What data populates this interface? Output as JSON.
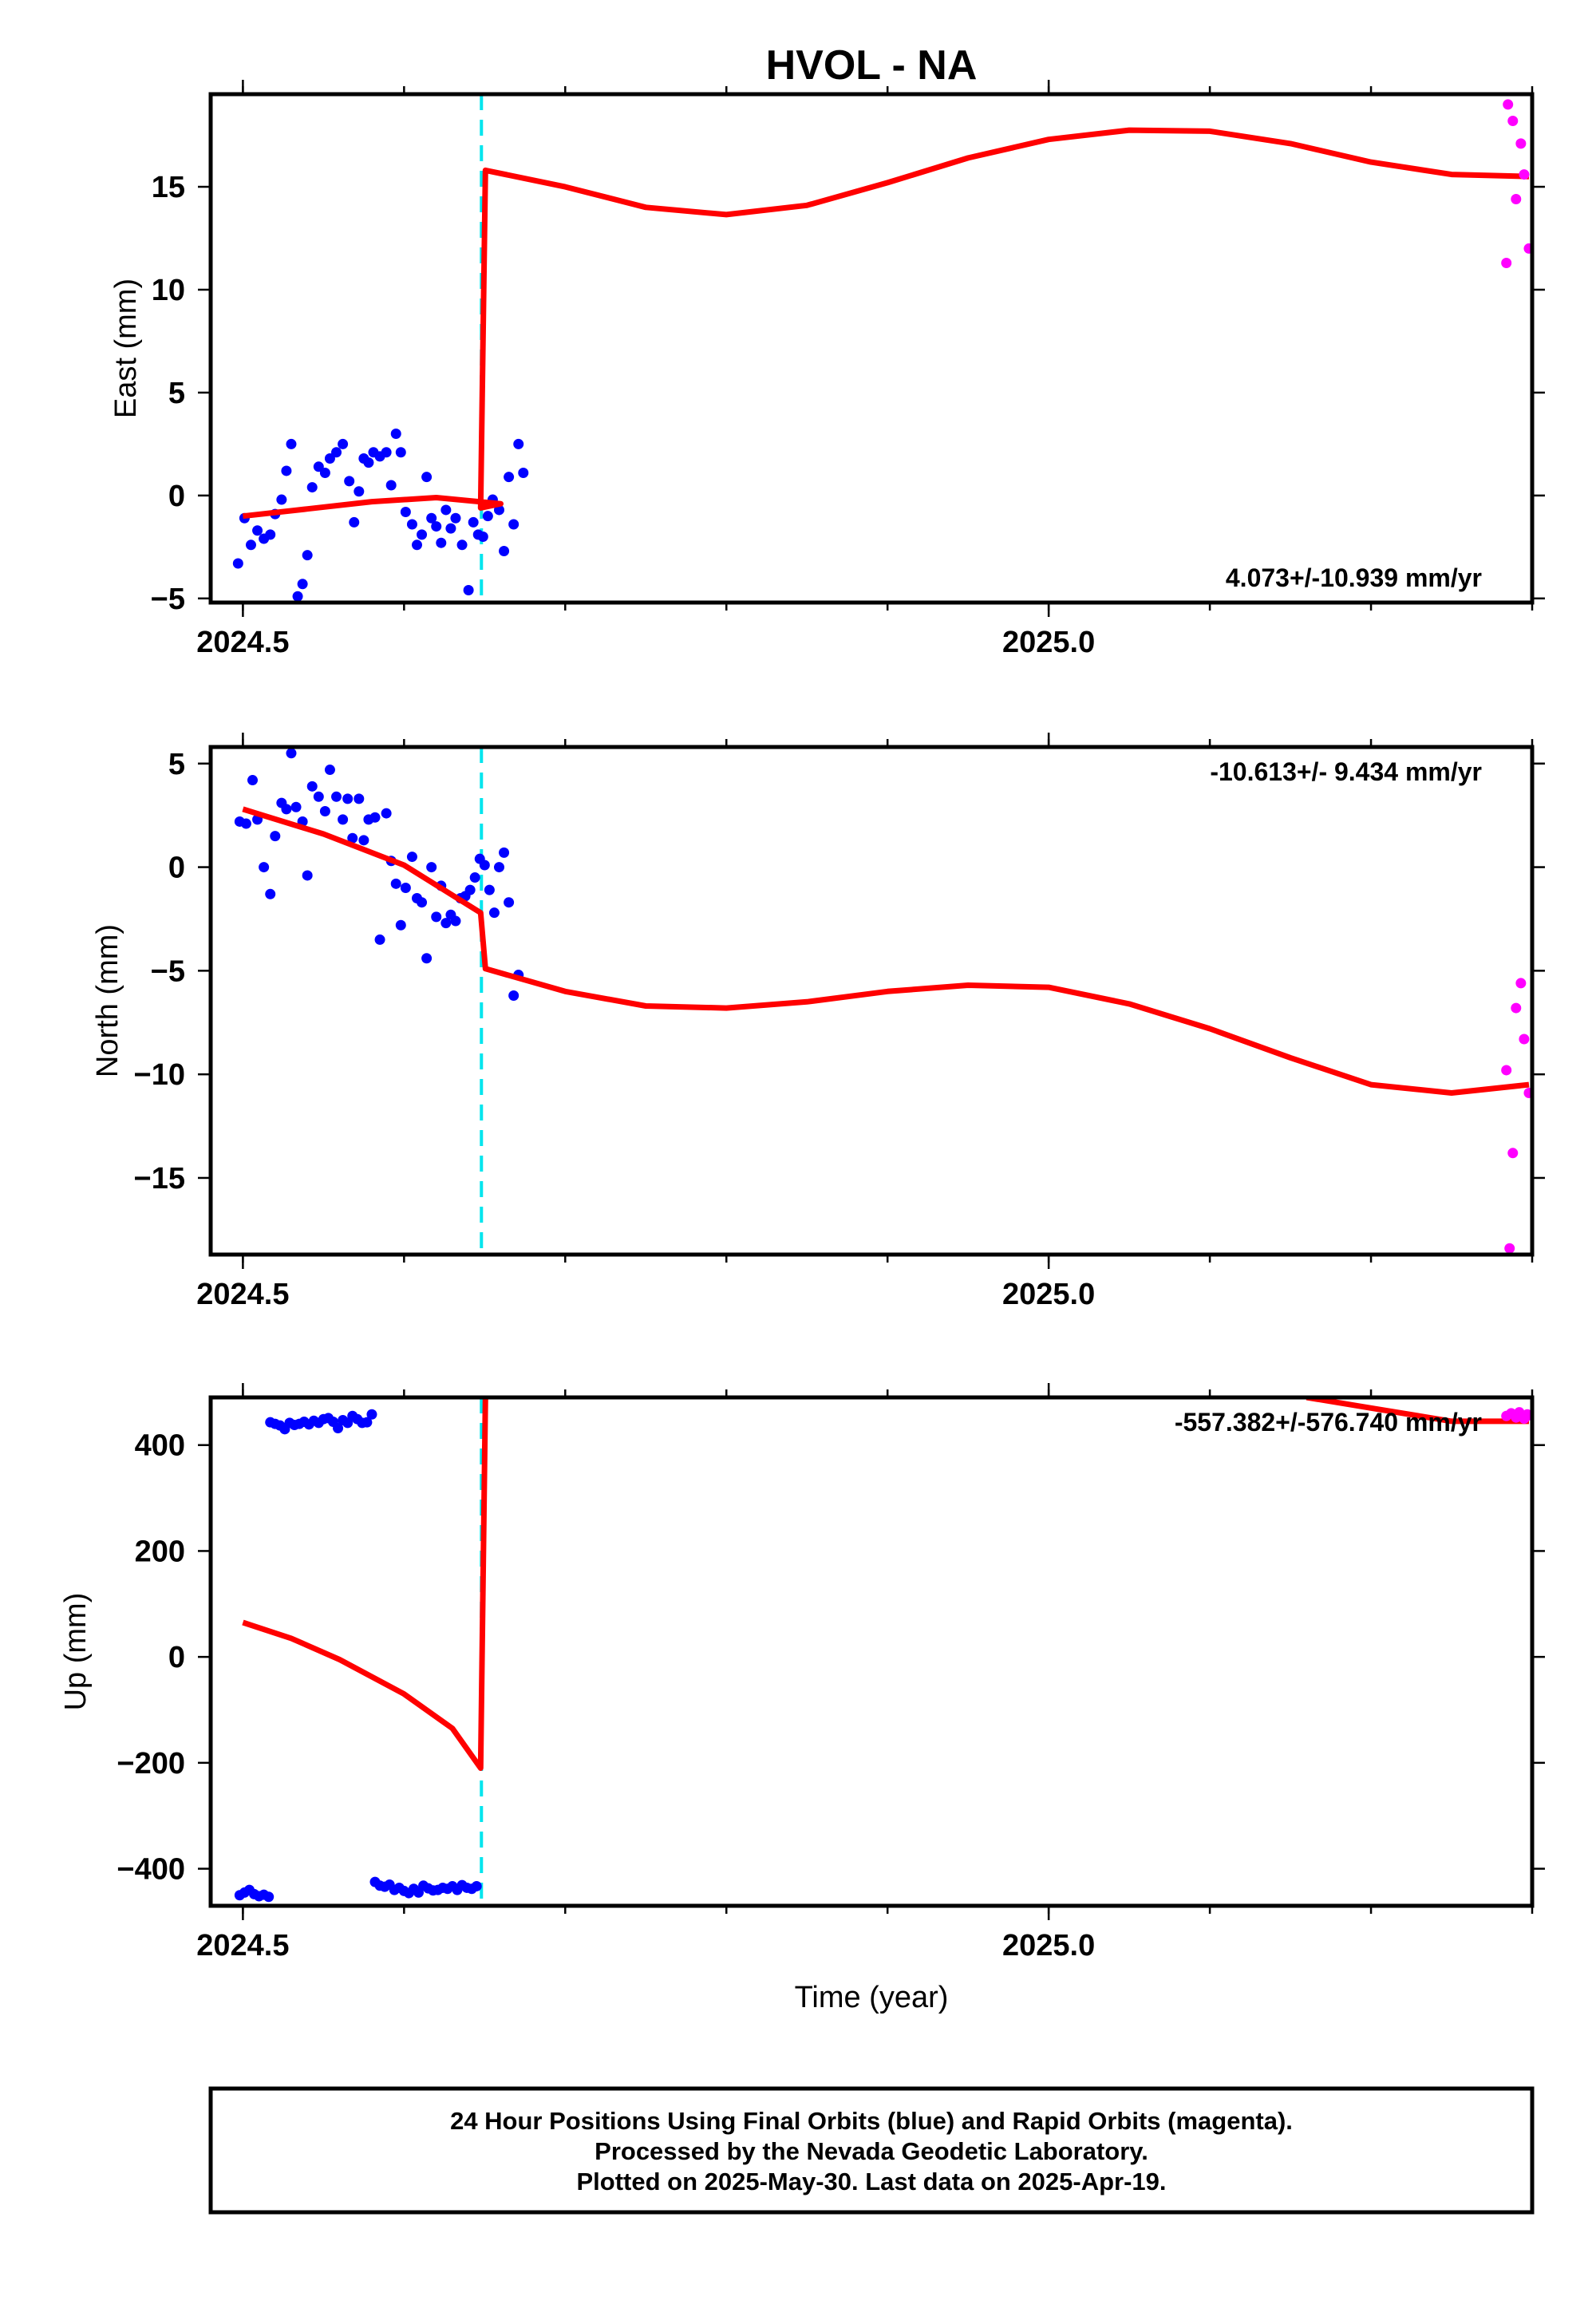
{
  "chart_data": {
    "type": "scatter",
    "title": "HVOL - NA",
    "xlabel": "Time (year)",
    "xlim": [
      2024.48,
      2025.3
    ],
    "x_ticks": [
      2024.5,
      2025.0
    ],
    "event_line_x": 2024.648,
    "series_colors": {
      "final": "#0000ff",
      "rapid": "#ff00ff",
      "fit": "#ff0000",
      "event": "#00e5ee"
    },
    "panels": [
      {
        "id": "east",
        "ylabel": "East (mm)",
        "ylim": [
          -5.2,
          19.5
        ],
        "y_ticks": [
          -5,
          0,
          5,
          10,
          15
        ],
        "y_tick_labels": [
          "−5",
          "0",
          "5",
          "10",
          "15"
        ],
        "x_tick_labels": [
          "2024.5",
          "2025.0"
        ],
        "rate_label": "4.073+/-10.939 mm/yr",
        "rate_pos": "bottom-right",
        "final": [
          [
            2024.497,
            -3.3
          ],
          [
            2024.501,
            -1.1
          ],
          [
            2024.505,
            -2.4
          ],
          [
            2024.509,
            -1.7
          ],
          [
            2024.513,
            -2.1
          ],
          [
            2024.517,
            -1.9
          ],
          [
            2024.52,
            -0.9
          ],
          [
            2024.524,
            -0.2
          ],
          [
            2024.527,
            1.2
          ],
          [
            2024.53,
            2.5
          ],
          [
            2024.534,
            -4.9
          ],
          [
            2024.537,
            -4.3
          ],
          [
            2024.54,
            -2.9
          ],
          [
            2024.543,
            0.4
          ],
          [
            2024.547,
            1.4
          ],
          [
            2024.551,
            1.1
          ],
          [
            2024.554,
            1.8
          ],
          [
            2024.558,
            2.1
          ],
          [
            2024.562,
            2.5
          ],
          [
            2024.566,
            0.7
          ],
          [
            2024.569,
            -1.3
          ],
          [
            2024.572,
            0.2
          ],
          [
            2024.575,
            1.8
          ],
          [
            2024.578,
            1.6
          ],
          [
            2024.581,
            2.1
          ],
          [
            2024.585,
            1.9
          ],
          [
            2024.589,
            2.1
          ],
          [
            2024.592,
            0.5
          ],
          [
            2024.595,
            3.0
          ],
          [
            2024.598,
            2.1
          ],
          [
            2024.601,
            -0.8
          ],
          [
            2024.605,
            -1.4
          ],
          [
            2024.608,
            -2.4
          ],
          [
            2024.611,
            -1.9
          ],
          [
            2024.614,
            0.9
          ],
          [
            2024.617,
            -1.1
          ],
          [
            2024.62,
            -1.5
          ],
          [
            2024.623,
            -2.3
          ],
          [
            2024.626,
            -0.7
          ],
          [
            2024.629,
            -1.6
          ],
          [
            2024.632,
            -1.1
          ],
          [
            2024.636,
            -2.4
          ],
          [
            2024.64,
            -4.6
          ],
          [
            2024.643,
            -1.3
          ],
          [
            2024.646,
            -1.9
          ],
          [
            2024.649,
            -2.0
          ],
          [
            2024.652,
            -1.0
          ],
          [
            2024.655,
            -0.2
          ],
          [
            2024.659,
            -0.7
          ],
          [
            2024.662,
            -2.7
          ],
          [
            2024.665,
            0.9
          ],
          [
            2024.668,
            -1.4
          ],
          [
            2024.671,
            2.5
          ],
          [
            2024.674,
            1.1
          ]
        ],
        "rapid": [
          [
            2025.284,
            11.3
          ],
          [
            2025.285,
            19.0
          ],
          [
            2025.288,
            18.2
          ],
          [
            2025.29,
            14.4
          ],
          [
            2025.293,
            17.1
          ],
          [
            2025.295,
            15.6
          ],
          [
            2025.298,
            12.0
          ]
        ],
        "fit": [
          [
            2024.5,
            -1.0
          ],
          [
            2024.54,
            -0.65
          ],
          [
            2024.58,
            -0.3
          ],
          [
            2024.62,
            -0.1
          ],
          [
            2024.66,
            -0.4
          ],
          [
            2024.6475,
            -0.6
          ],
          [
            2024.6505,
            15.8
          ],
          [
            2024.7,
            15.0
          ],
          [
            2024.75,
            14.0
          ],
          [
            2024.8,
            13.65
          ],
          [
            2024.85,
            14.1
          ],
          [
            2024.9,
            15.2
          ],
          [
            2024.95,
            16.4
          ],
          [
            2025.0,
            17.3
          ],
          [
            2025.05,
            17.75
          ],
          [
            2025.1,
            17.7
          ],
          [
            2025.15,
            17.1
          ],
          [
            2025.2,
            16.2
          ],
          [
            2025.25,
            15.6
          ],
          [
            2025.298,
            15.5
          ]
        ]
      },
      {
        "id": "north",
        "ylabel": "North (mm)",
        "ylim": [
          -18.7,
          5.8
        ],
        "y_ticks": [
          -15,
          -10,
          -5,
          0,
          5
        ],
        "y_tick_labels": [
          "−15",
          "−10",
          "−5",
          "0",
          "5"
        ],
        "x_tick_labels": [
          "2024.5",
          "2025.0"
        ],
        "rate_label": "-10.613+/- 9.434 mm/yr",
        "rate_pos": "top-right",
        "final": [
          [
            2024.498,
            2.2
          ],
          [
            2024.502,
            2.1
          ],
          [
            2024.506,
            4.2
          ],
          [
            2024.509,
            2.3
          ],
          [
            2024.513,
            0.0
          ],
          [
            2024.517,
            -1.3
          ],
          [
            2024.52,
            1.5
          ],
          [
            2024.524,
            3.1
          ],
          [
            2024.527,
            2.8
          ],
          [
            2024.53,
            5.5
          ],
          [
            2024.533,
            2.9
          ],
          [
            2024.537,
            2.2
          ],
          [
            2024.54,
            -0.4
          ],
          [
            2024.543,
            3.9
          ],
          [
            2024.547,
            3.4
          ],
          [
            2024.551,
            2.7
          ],
          [
            2024.554,
            4.7
          ],
          [
            2024.558,
            3.4
          ],
          [
            2024.562,
            2.3
          ],
          [
            2024.565,
            3.3
          ],
          [
            2024.568,
            1.4
          ],
          [
            2024.572,
            3.3
          ],
          [
            2024.575,
            1.3
          ],
          [
            2024.578,
            2.3
          ],
          [
            2024.582,
            2.4
          ],
          [
            2024.585,
            -3.5
          ],
          [
            2024.589,
            2.6
          ],
          [
            2024.592,
            0.3
          ],
          [
            2024.595,
            -0.8
          ],
          [
            2024.598,
            -2.8
          ],
          [
            2024.601,
            -1.0
          ],
          [
            2024.605,
            0.5
          ],
          [
            2024.608,
            -1.5
          ],
          [
            2024.611,
            -1.7
          ],
          [
            2024.614,
            -4.4
          ],
          [
            2024.617,
            0.0
          ],
          [
            2024.62,
            -2.4
          ],
          [
            2024.623,
            -0.9
          ],
          [
            2024.626,
            -2.7
          ],
          [
            2024.629,
            -2.3
          ],
          [
            2024.632,
            -2.6
          ],
          [
            2024.635,
            -1.5
          ],
          [
            2024.638,
            -1.4
          ],
          [
            2024.641,
            -1.1
          ],
          [
            2024.644,
            -0.5
          ],
          [
            2024.647,
            0.4
          ],
          [
            2024.65,
            0.1
          ],
          [
            2024.653,
            -1.1
          ],
          [
            2024.656,
            -2.2
          ],
          [
            2024.659,
            0.0
          ],
          [
            2024.662,
            0.7
          ],
          [
            2024.665,
            -1.7
          ],
          [
            2024.668,
            -6.2
          ],
          [
            2024.671,
            -5.2
          ]
        ],
        "rapid": [
          [
            2025.284,
            -9.8
          ],
          [
            2025.286,
            -18.4
          ],
          [
            2025.288,
            -13.8
          ],
          [
            2025.29,
            -6.8
          ],
          [
            2025.293,
            -5.6
          ],
          [
            2025.295,
            -8.3
          ],
          [
            2025.298,
            -10.9
          ]
        ],
        "fit": [
          [
            2024.5,
            2.8
          ],
          [
            2024.55,
            1.6
          ],
          [
            2024.6,
            0.1
          ],
          [
            2024.6475,
            -2.2
          ],
          [
            2024.6505,
            -4.9
          ],
          [
            2024.7,
            -6.0
          ],
          [
            2024.75,
            -6.7
          ],
          [
            2024.8,
            -6.8
          ],
          [
            2024.85,
            -6.5
          ],
          [
            2024.9,
            -6.0
          ],
          [
            2024.95,
            -5.7
          ],
          [
            2025.0,
            -5.8
          ],
          [
            2025.05,
            -6.6
          ],
          [
            2025.1,
            -7.8
          ],
          [
            2025.15,
            -9.2
          ],
          [
            2025.2,
            -10.5
          ],
          [
            2025.25,
            -10.9
          ],
          [
            2025.298,
            -10.5
          ]
        ]
      },
      {
        "id": "up",
        "ylabel": "Up (mm)",
        "ylim": [
          -470,
          490
        ],
        "y_ticks": [
          -400,
          -200,
          0,
          200,
          400
        ],
        "y_tick_labels": [
          "−400",
          "−200",
          "0",
          "200",
          "400"
        ],
        "x_tick_labels": [
          "2024.5",
          "2025.0"
        ],
        "rate_label": "-557.382+/-576.740 mm/yr",
        "rate_pos": "top-right",
        "final": [
          [
            2024.498,
            -450
          ],
          [
            2024.501,
            -445
          ],
          [
            2024.504,
            -440
          ],
          [
            2024.507,
            -448
          ],
          [
            2024.51,
            -452
          ],
          [
            2024.513,
            -449
          ],
          [
            2024.516,
            -453
          ],
          [
            2024.517,
            443
          ],
          [
            2024.52,
            440
          ],
          [
            2024.523,
            437
          ],
          [
            2024.526,
            430
          ],
          [
            2024.529,
            442
          ],
          [
            2024.532,
            438
          ],
          [
            2024.535,
            440
          ],
          [
            2024.538,
            444
          ],
          [
            2024.541,
            439
          ],
          [
            2024.544,
            446
          ],
          [
            2024.547,
            442
          ],
          [
            2024.55,
            449
          ],
          [
            2024.553,
            451
          ],
          [
            2024.556,
            444
          ],
          [
            2024.559,
            432
          ],
          [
            2024.562,
            447
          ],
          [
            2024.565,
            442
          ],
          [
            2024.568,
            455
          ],
          [
            2024.571,
            449
          ],
          [
            2024.574,
            442
          ],
          [
            2024.577,
            443
          ],
          [
            2024.58,
            458
          ],
          [
            2024.582,
            -425
          ],
          [
            2024.585,
            -432
          ],
          [
            2024.588,
            -434
          ],
          [
            2024.591,
            -430
          ],
          [
            2024.594,
            -440
          ],
          [
            2024.597,
            -436
          ],
          [
            2024.6,
            -442
          ],
          [
            2024.603,
            -446
          ],
          [
            2024.606,
            -438
          ],
          [
            2024.609,
            -445
          ],
          [
            2024.612,
            -432
          ],
          [
            2024.615,
            -437
          ],
          [
            2024.618,
            -441
          ],
          [
            2024.621,
            -440
          ],
          [
            2024.624,
            -436
          ],
          [
            2024.627,
            -438
          ],
          [
            2024.63,
            -433
          ],
          [
            2024.633,
            -440
          ],
          [
            2024.636,
            -431
          ],
          [
            2024.639,
            -436
          ],
          [
            2024.642,
            -438
          ],
          [
            2024.645,
            -433
          ]
        ],
        "rapid": [
          [
            2025.284,
            455
          ],
          [
            2025.287,
            460
          ],
          [
            2025.29,
            452
          ],
          [
            2025.292,
            462
          ],
          [
            2025.295,
            450
          ],
          [
            2025.297,
            458
          ],
          [
            2025.298,
            456
          ]
        ],
        "fit": [
          [
            2024.5,
            65
          ],
          [
            2024.53,
            35
          ],
          [
            2024.56,
            -5
          ],
          [
            2024.6,
            -70
          ],
          [
            2024.63,
            -135
          ],
          [
            2024.6475,
            -210
          ],
          [
            2024.6505,
            490
          ]
        ],
        "fit2": [
          [
            2025.16,
            490
          ],
          [
            2025.2,
            470
          ],
          [
            2025.25,
            445
          ],
          [
            2025.298,
            445
          ]
        ]
      }
    ]
  },
  "footer": {
    "line1": "24 Hour Positions Using Final Orbits (blue) and Rapid Orbits (magenta).",
    "line2": "Processed by the Nevada Geodetic Laboratory.",
    "line3": "Plotted on 2025-May-30. Last data on 2025-Apr-19."
  }
}
